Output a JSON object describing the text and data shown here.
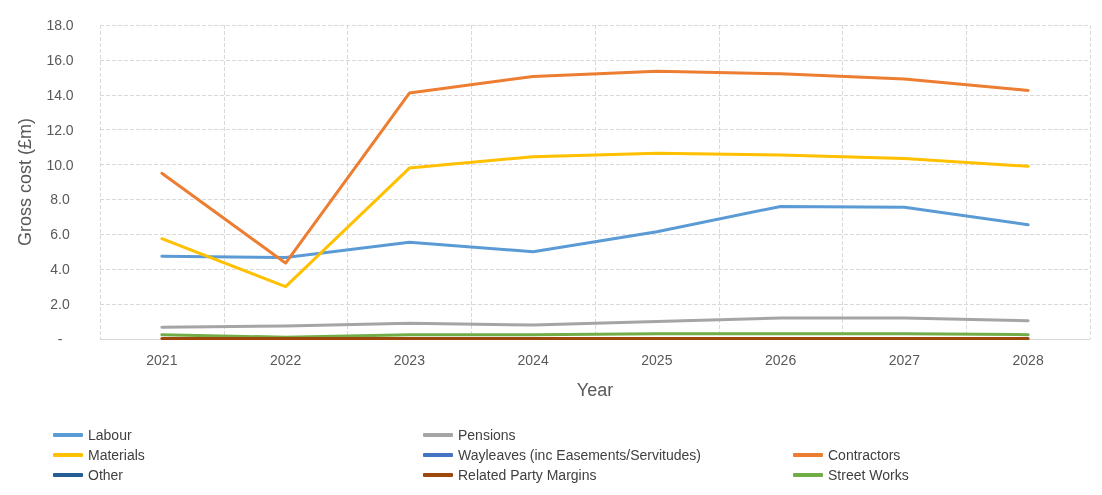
{
  "chart_data": {
    "type": "line",
    "xlabel": "Year",
    "ylabel": "Gross cost (£m)",
    "categories": [
      "2021",
      "2022",
      "2023",
      "2024",
      "2025",
      "2026",
      "2027",
      "2028"
    ],
    "ylim": [
      0,
      18
    ],
    "yticks": [
      {
        "value": 0,
        "label": "-"
      },
      {
        "value": 2,
        "label": "2.0"
      },
      {
        "value": 4,
        "label": "4.0"
      },
      {
        "value": 6,
        "label": "6.0"
      },
      {
        "value": 8,
        "label": "8.0"
      },
      {
        "value": 10,
        "label": "10.0"
      },
      {
        "value": 12,
        "label": "12.0"
      },
      {
        "value": 14,
        "label": "14.0"
      },
      {
        "value": 16,
        "label": "16.0"
      },
      {
        "value": 18,
        "label": "18.0"
      }
    ],
    "grid": true,
    "legend": "bottom",
    "marker": "none",
    "line_style": "solid",
    "series": [
      {
        "name": "Labour",
        "color": "#5b9bd5",
        "values": [
          4.75,
          4.67,
          5.55,
          5.0,
          6.15,
          7.6,
          7.55,
          6.55
        ]
      },
      {
        "name": "Pensions",
        "color": "#a5a5a5",
        "values": [
          0.67,
          0.75,
          0.9,
          0.8,
          1.0,
          1.2,
          1.2,
          1.05
        ]
      },
      {
        "name": "Contractors",
        "color": "#ed7d31",
        "values": [
          9.5,
          4.35,
          14.1,
          15.05,
          15.35,
          15.2,
          14.9,
          14.25
        ]
      },
      {
        "name": "Materials",
        "color": "#ffc000",
        "values": [
          5.75,
          3.0,
          9.8,
          10.45,
          10.65,
          10.55,
          10.35,
          9.9
        ]
      },
      {
        "name": "Wayleaves (inc Easements/Servitudes)",
        "color": "#4472c4",
        "values": [
          null,
          null,
          null,
          null,
          null,
          null,
          null,
          null
        ]
      },
      {
        "name": "Street Works",
        "color": "#70ad47",
        "values": [
          0.25,
          0.1,
          0.25,
          0.25,
          0.3,
          0.3,
          0.3,
          0.25
        ]
      },
      {
        "name": "Other",
        "color": "#255e91",
        "values": [
          null,
          null,
          null,
          null,
          null,
          null,
          null,
          null
        ]
      },
      {
        "name": "Related Party Margins",
        "color": "#9e480e",
        "values": [
          0.03,
          0.03,
          0.03,
          0.03,
          0.03,
          0.03,
          0.03,
          0.03
        ]
      }
    ]
  }
}
